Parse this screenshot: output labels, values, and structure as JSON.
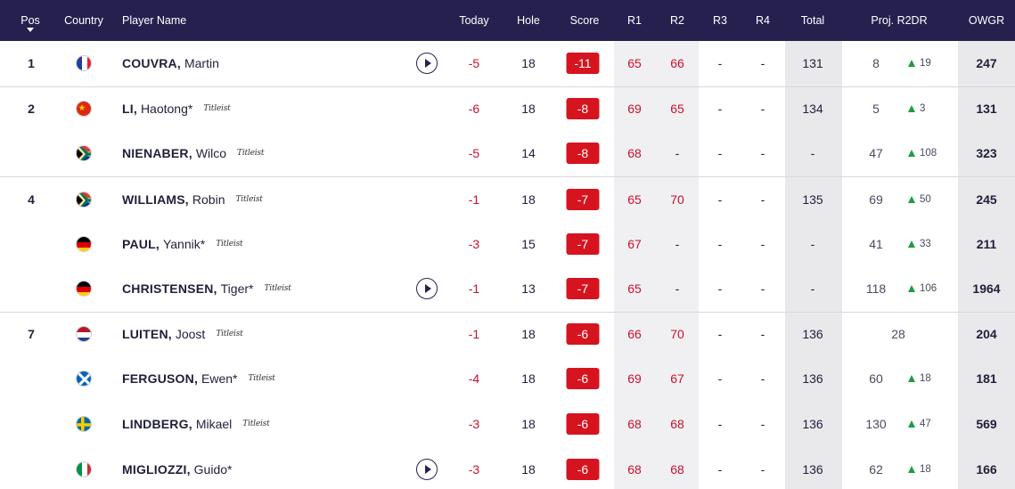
{
  "header": {
    "pos": "Pos",
    "country": "Country",
    "player_name": "Player Name",
    "today": "Today",
    "hole": "Hole",
    "score": "Score",
    "r1": "R1",
    "r2": "R2",
    "r3": "R3",
    "r4": "R4",
    "total": "Total",
    "proj": "Proj. R2DR",
    "owgr": "OWGR"
  },
  "colors": {
    "header_bg": "#26204f",
    "score_badge": "#d5141f",
    "under_par_text": "#c8102e",
    "movement_up": "#1f9c3e",
    "column_shade": "#efeff0"
  },
  "sponsor_logo_text": "Titleist",
  "rows": [
    {
      "pos": "1",
      "flag": "france-flag-icon",
      "last": "COUVRA,",
      "first": "Martin",
      "titleist": false,
      "video": true,
      "today": "-5",
      "hole": "18",
      "score": "-11",
      "r1": "65",
      "r2": "66",
      "r3": "-",
      "r4": "-",
      "total": "131",
      "proj": "8",
      "move": "19",
      "owgr": "247"
    },
    {
      "pos": "2",
      "flag": "china-flag-icon",
      "last": "LI,",
      "first": "Haotong*",
      "titleist": true,
      "video": false,
      "today": "-6",
      "hole": "18",
      "score": "-8",
      "r1": "69",
      "r2": "65",
      "r3": "-",
      "r4": "-",
      "total": "134",
      "proj": "5",
      "move": "3",
      "owgr": "131"
    },
    {
      "pos": "",
      "flag": "south-africa-flag-icon",
      "last": "NIENABER,",
      "first": "Wilco",
      "titleist": true,
      "video": false,
      "today": "-5",
      "hole": "14",
      "score": "-8",
      "r1": "68",
      "r2": "-",
      "r3": "-",
      "r4": "-",
      "total": "-",
      "proj": "47",
      "move": "108",
      "owgr": "323"
    },
    {
      "pos": "4",
      "flag": "south-africa-flag-icon",
      "last": "WILLIAMS,",
      "first": "Robin",
      "titleist": true,
      "video": false,
      "today": "-1",
      "hole": "18",
      "score": "-7",
      "r1": "65",
      "r2": "70",
      "r3": "-",
      "r4": "-",
      "total": "135",
      "proj": "69",
      "move": "50",
      "owgr": "245"
    },
    {
      "pos": "",
      "flag": "germany-flag-icon",
      "last": "PAUL,",
      "first": "Yannik*",
      "titleist": true,
      "video": false,
      "today": "-3",
      "hole": "15",
      "score": "-7",
      "r1": "67",
      "r2": "-",
      "r3": "-",
      "r4": "-",
      "total": "-",
      "proj": "41",
      "move": "33",
      "owgr": "211"
    },
    {
      "pos": "",
      "flag": "germany-flag-icon",
      "last": "CHRISTENSEN,",
      "first": "Tiger*",
      "titleist": true,
      "video": true,
      "today": "-1",
      "hole": "13",
      "score": "-7",
      "r1": "65",
      "r2": "-",
      "r3": "-",
      "r4": "-",
      "total": "-",
      "proj": "118",
      "move": "106",
      "owgr": "1964"
    },
    {
      "pos": "7",
      "flag": "netherlands-flag-icon",
      "last": "LUITEN,",
      "first": "Joost",
      "titleist": true,
      "video": false,
      "today": "-1",
      "hole": "18",
      "score": "-6",
      "r1": "66",
      "r2": "70",
      "r3": "-",
      "r4": "-",
      "total": "136",
      "proj": "28",
      "move": "",
      "owgr": "204"
    },
    {
      "pos": "",
      "flag": "scotland-flag-icon",
      "last": "FERGUSON,",
      "first": "Ewen*",
      "titleist": true,
      "video": false,
      "today": "-4",
      "hole": "18",
      "score": "-6",
      "r1": "69",
      "r2": "67",
      "r3": "-",
      "r4": "-",
      "total": "136",
      "proj": "60",
      "move": "18",
      "owgr": "181"
    },
    {
      "pos": "",
      "flag": "sweden-flag-icon",
      "last": "LINDBERG,",
      "first": "Mikael",
      "titleist": true,
      "video": false,
      "today": "-3",
      "hole": "18",
      "score": "-6",
      "r1": "68",
      "r2": "68",
      "r3": "-",
      "r4": "-",
      "total": "136",
      "proj": "130",
      "move": "47",
      "owgr": "569"
    },
    {
      "pos": "",
      "flag": "italy-flag-icon",
      "last": "MIGLIOZZI,",
      "first": "Guido*",
      "titleist": false,
      "video": true,
      "today": "-3",
      "hole": "18",
      "score": "-6",
      "r1": "68",
      "r2": "68",
      "r3": "-",
      "r4": "-",
      "total": "136",
      "proj": "62",
      "move": "18",
      "owgr": "166"
    }
  ]
}
